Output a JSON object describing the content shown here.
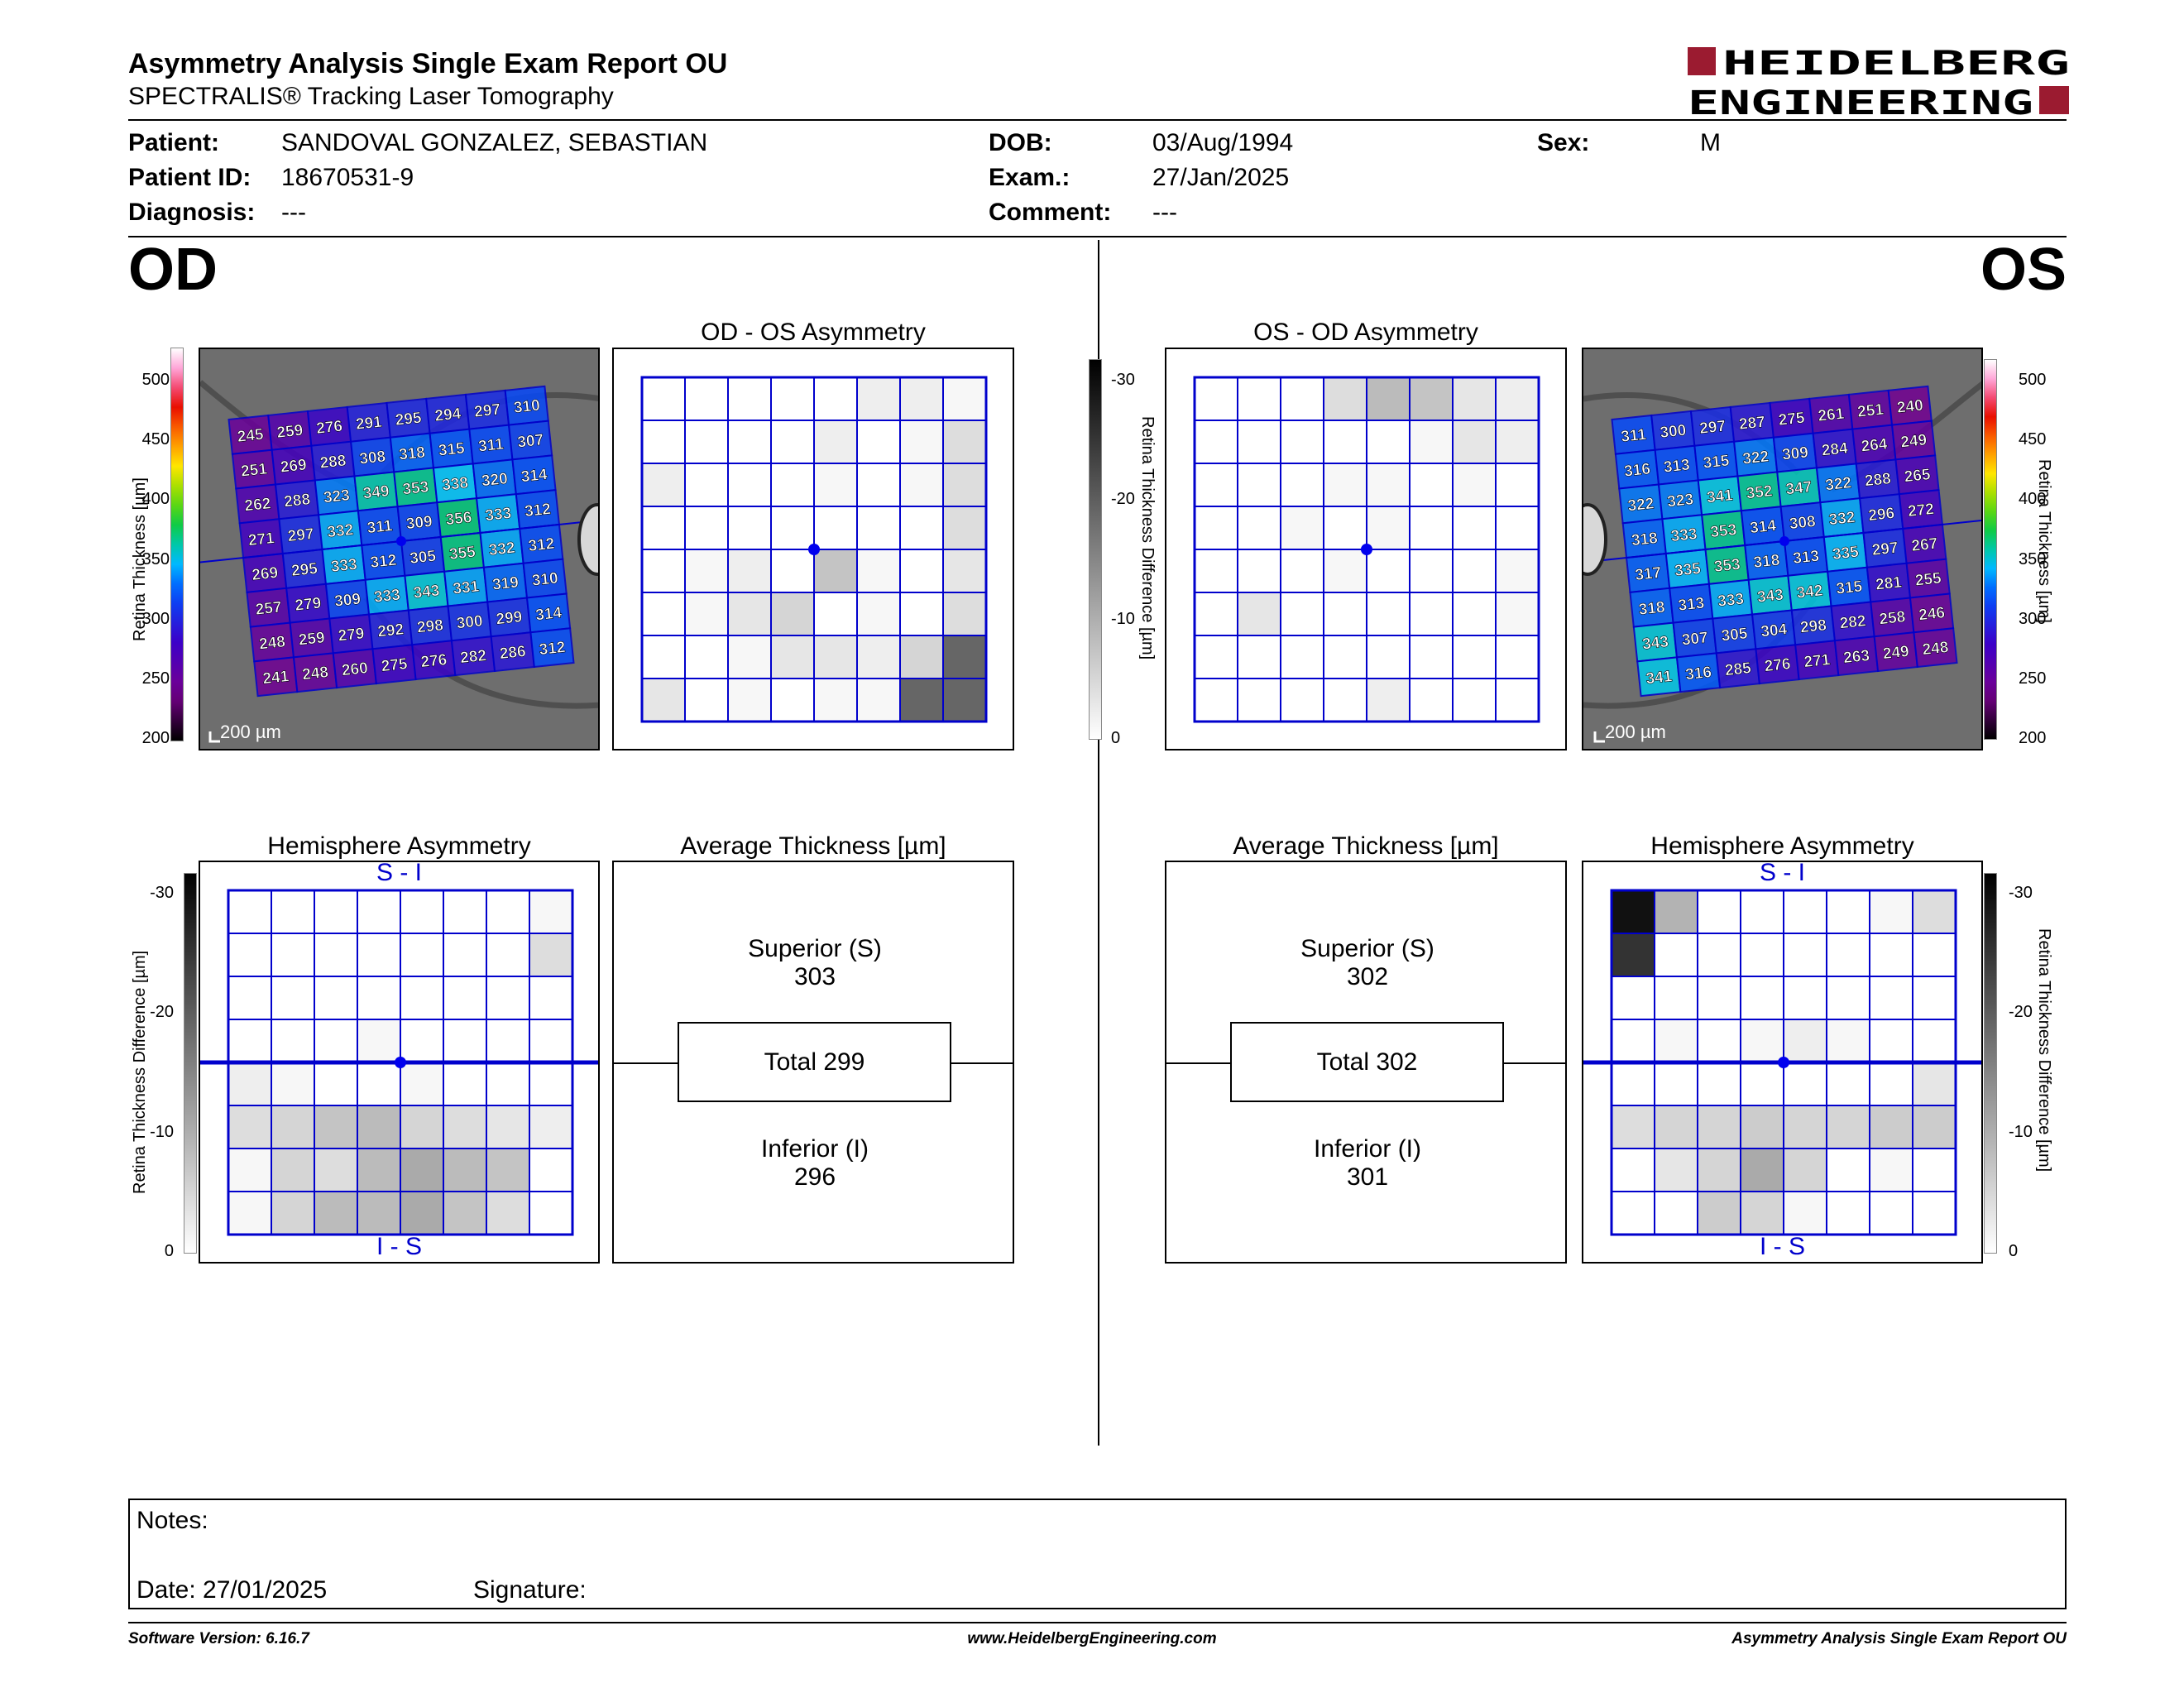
{
  "header": {
    "title": "Asymmetry Analysis Single Exam Report OU",
    "subtitle": "SPECTRALIS® Tracking Laser Tomography",
    "logo_line1": "HEIDELBERG",
    "logo_line2": "ENGINEERING",
    "logo_color": "#9b1b30"
  },
  "patient": {
    "patient_label": "Patient:",
    "patient_value": "SANDOVAL GONZALEZ, SEBASTIAN",
    "id_label": "Patient ID:",
    "id_value": "18670531-9",
    "diagnosis_label": "Diagnosis:",
    "diagnosis_value": "---",
    "dob_label": "DOB:",
    "dob_value": "03/Aug/1994",
    "exam_label": "Exam.:",
    "exam_value": "27/Jan/2025",
    "comment_label": "Comment:",
    "comment_value": "---",
    "sex_label": "Sex:",
    "sex_value": "M"
  },
  "od": {
    "eye": "OD",
    "asym_title": "OD - OS Asymmetry",
    "hemi_title": "Hemisphere Asymmetry",
    "avg_title": "Average Thickness [µm]",
    "hemi_top": "S - I",
    "hemi_bottom": "I - S",
    "superior_label": "Superior (S)",
    "superior_value": "303",
    "total_value": "Total 299",
    "inferior_label": "Inferior (I)",
    "inferior_value": "296",
    "scale_bar": "200 µm",
    "thickness": [
      [
        245,
        259,
        276,
        291,
        295,
        294,
        297,
        310
      ],
      [
        251,
        269,
        288,
        308,
        318,
        315,
        311,
        307
      ],
      [
        262,
        288,
        323,
        349,
        353,
        338,
        320,
        314
      ],
      [
        271,
        297,
        332,
        311,
        309,
        356,
        333,
        312
      ],
      [
        269,
        295,
        333,
        312,
        305,
        355,
        332,
        312
      ],
      [
        257,
        279,
        309,
        333,
        343,
        331,
        319,
        310
      ],
      [
        248,
        259,
        279,
        292,
        298,
        300,
        299,
        314
      ],
      [
        241,
        248,
        260,
        275,
        276,
        282,
        286,
        312
      ]
    ],
    "asym_grid": [
      [
        0,
        0,
        0,
        0,
        0,
        2,
        2,
        1
      ],
      [
        0,
        0,
        0,
        0,
        2,
        0,
        1,
        4
      ],
      [
        2,
        0,
        0,
        0,
        1,
        0,
        1,
        4
      ],
      [
        0,
        0,
        0,
        0,
        0,
        0,
        0,
        4
      ],
      [
        0,
        1,
        2,
        0,
        7,
        1,
        0,
        3
      ],
      [
        0,
        1,
        3,
        5,
        0,
        1,
        0,
        4
      ],
      [
        0,
        0,
        1,
        3,
        3,
        2,
        5,
        18
      ],
      [
        3,
        0,
        1,
        0,
        1,
        1,
        18,
        18
      ]
    ],
    "hemi_grid": [
      [
        0,
        0,
        0,
        0,
        0,
        0,
        0,
        1
      ],
      [
        0,
        0,
        0,
        0,
        0,
        0,
        0,
        4
      ],
      [
        0,
        0,
        0,
        0,
        0,
        0,
        0,
        0
      ],
      [
        0,
        0,
        0,
        1,
        0,
        0,
        0,
        0
      ],
      [
        2,
        1,
        0,
        0,
        1,
        0,
        0,
        0
      ],
      [
        4,
        5,
        7,
        8,
        5,
        4,
        3,
        2
      ],
      [
        1,
        5,
        4,
        8,
        10,
        8,
        7,
        0
      ],
      [
        1,
        5,
        8,
        8,
        10,
        7,
        4,
        0
      ]
    ]
  },
  "os": {
    "eye": "OS",
    "asym_title": "OS - OD Asymmetry",
    "hemi_title": "Hemisphere Asymmetry",
    "avg_title": "Average Thickness [µm]",
    "hemi_top": "S - I",
    "hemi_bottom": "I - S",
    "superior_label": "Superior (S)",
    "superior_value": "302",
    "total_value": "Total 302",
    "inferior_label": "Inferior (I)",
    "inferior_value": "301",
    "scale_bar": "200 µm",
    "thickness": [
      [
        311,
        300,
        297,
        287,
        275,
        261,
        251,
        240
      ],
      [
        316,
        313,
        315,
        322,
        309,
        284,
        264,
        249
      ],
      [
        322,
        323,
        341,
        352,
        347,
        322,
        288,
        265
      ],
      [
        318,
        333,
        353,
        314,
        308,
        332,
        296,
        272
      ],
      [
        317,
        335,
        353,
        318,
        313,
        335,
        297,
        267
      ],
      [
        318,
        313,
        333,
        343,
        342,
        315,
        281,
        255
      ],
      [
        343,
        307,
        305,
        304,
        298,
        282,
        258,
        246
      ],
      [
        341,
        316,
        285,
        276,
        271,
        263,
        249,
        248
      ]
    ],
    "asym_grid": [
      [
        0,
        0,
        0,
        4,
        8,
        7,
        3,
        2
      ],
      [
        0,
        0,
        0,
        0,
        0,
        1,
        3,
        2
      ],
      [
        0,
        0,
        0,
        1,
        1,
        0,
        1,
        0
      ],
      [
        0,
        0,
        1,
        0,
        1,
        0,
        0,
        0
      ],
      [
        0,
        0,
        0,
        1,
        0,
        0,
        0,
        1
      ],
      [
        0,
        3,
        0,
        0,
        0,
        0,
        0,
        1
      ],
      [
        0,
        0,
        0,
        0,
        0,
        0,
        0,
        0
      ],
      [
        0,
        0,
        0,
        0,
        2,
        0,
        0,
        0
      ]
    ],
    "hemi_grid": [
      [
        28,
        9,
        0,
        0,
        0,
        0,
        1,
        4
      ],
      [
        24,
        0,
        0,
        0,
        0,
        0,
        0,
        0
      ],
      [
        0,
        0,
        0,
        0,
        0,
        0,
        0,
        0
      ],
      [
        0,
        1,
        0,
        1,
        2,
        1,
        0,
        0
      ],
      [
        0,
        0,
        0,
        0,
        0,
        0,
        0,
        3
      ],
      [
        4,
        5,
        5,
        6,
        5,
        5,
        6,
        6
      ],
      [
        0,
        3,
        5,
        10,
        5,
        0,
        1,
        0
      ],
      [
        0,
        0,
        6,
        5,
        1,
        0,
        0,
        0
      ]
    ]
  },
  "scales": {
    "thickness_title": "Retina Thickness [µm]",
    "thickness_ticks": [
      "500",
      "450",
      "400",
      "350",
      "300",
      "250",
      "200"
    ],
    "diff_title": "Retina Thickness Difference [µm]",
    "diff_ticks": [
      "-30",
      "-20",
      "-10",
      "0"
    ]
  },
  "notes": {
    "notes_label": "Notes:",
    "date_label": "Date: 27/01/2025",
    "signature_label": "Signature:"
  },
  "footer": {
    "left": "Software Version: 6.16.7",
    "center": "www.HeidelbergEngineering.com",
    "right": "Asymmetry Analysis Single Exam Report OU"
  }
}
